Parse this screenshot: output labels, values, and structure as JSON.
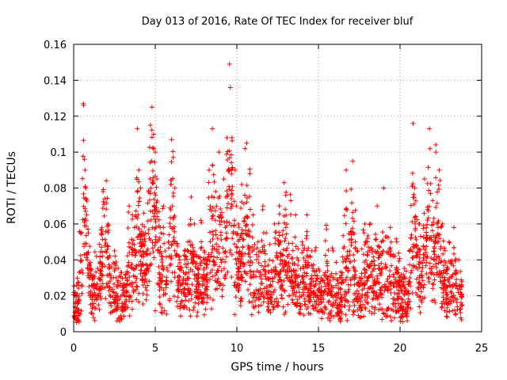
{
  "chart_data": {
    "type": "scatter",
    "title": "Day 013 of 2016, Rate Of TEC Index for receiver bluf",
    "xlabel": "GPS time / hours",
    "ylabel": "ROTI / TECUs",
    "xlim": [
      0,
      25
    ],
    "ylim": [
      0,
      0.16
    ],
    "xticks": [
      0,
      5,
      10,
      15,
      20,
      25
    ],
    "yticks": [
      0,
      0.02,
      0.04,
      0.06,
      0.08,
      0.1,
      0.12,
      0.14,
      0.16
    ],
    "xtick_labels": [
      "0",
      "5",
      "10",
      "15",
      "20",
      "25"
    ],
    "ytick_labels": [
      "0",
      "0.02",
      "0.04",
      "0.06",
      "0.08",
      "0.1",
      "0.12",
      "0.14",
      "0.16"
    ],
    "grid": true,
    "marker": "+",
    "color": "#ff0000",
    "series": [
      {
        "name": "ROTI",
        "points": [
          [
            0.1,
            0.022
          ],
          [
            0.3,
            0.018
          ],
          [
            0.5,
            0.026
          ],
          [
            0.6,
            0.127
          ],
          [
            0.7,
            0.09
          ],
          [
            0.75,
            0.08
          ],
          [
            0.8,
            0.065
          ],
          [
            0.9,
            0.055
          ],
          [
            1.0,
            0.03
          ],
          [
            1.2,
            0.02
          ],
          [
            1.4,
            0.042
          ],
          [
            1.6,
            0.038
          ],
          [
            1.7,
            0.054
          ],
          [
            1.8,
            0.078
          ],
          [
            1.9,
            0.074
          ],
          [
            2.0,
            0.084
          ],
          [
            2.1,
            0.06
          ],
          [
            2.3,
            0.03
          ],
          [
            2.6,
            0.02
          ],
          [
            3.0,
            0.025
          ],
          [
            3.2,
            0.03
          ],
          [
            3.4,
            0.07
          ],
          [
            3.6,
            0.065
          ],
          [
            3.9,
            0.113
          ],
          [
            4.0,
            0.09
          ],
          [
            4.1,
            0.08
          ],
          [
            4.3,
            0.066
          ],
          [
            4.5,
            0.045
          ],
          [
            4.7,
            0.115
          ],
          [
            4.8,
            0.125
          ],
          [
            4.9,
            0.11
          ],
          [
            5.0,
            0.1
          ],
          [
            5.1,
            0.085
          ],
          [
            5.3,
            0.058
          ],
          [
            5.5,
            0.07
          ],
          [
            5.8,
            0.05
          ],
          [
            6.0,
            0.107
          ],
          [
            6.1,
            0.097
          ],
          [
            6.2,
            0.08
          ],
          [
            6.5,
            0.04
          ],
          [
            7.0,
            0.05
          ],
          [
            7.2,
            0.075
          ],
          [
            7.4,
            0.06
          ],
          [
            7.6,
            0.035
          ],
          [
            7.8,
            0.062
          ],
          [
            8.0,
            0.045
          ],
          [
            8.3,
            0.09
          ],
          [
            8.5,
            0.113
          ],
          [
            8.7,
            0.078
          ],
          [
            8.9,
            0.1
          ],
          [
            9.2,
            0.085
          ],
          [
            9.4,
            0.108
          ],
          [
            9.55,
            0.149
          ],
          [
            9.6,
            0.136
          ],
          [
            9.7,
            0.108
          ],
          [
            9.9,
            0.09
          ],
          [
            10.1,
            0.06
          ],
          [
            10.3,
            0.082
          ],
          [
            10.5,
            0.102
          ],
          [
            10.6,
            0.105
          ],
          [
            10.8,
            0.088
          ],
          [
            11.0,
            0.065
          ],
          [
            11.3,
            0.05
          ],
          [
            11.6,
            0.07
          ],
          [
            12.0,
            0.04
          ],
          [
            12.3,
            0.06
          ],
          [
            12.6,
            0.07
          ],
          [
            12.9,
            0.083
          ],
          [
            13.0,
            0.076
          ],
          [
            13.3,
            0.073
          ],
          [
            13.6,
            0.065
          ],
          [
            14.0,
            0.05
          ],
          [
            14.3,
            0.065
          ],
          [
            14.6,
            0.045
          ],
          [
            15.0,
            0.035
          ],
          [
            15.5,
            0.057
          ],
          [
            15.9,
            0.045
          ],
          [
            16.3,
            0.03
          ],
          [
            16.7,
            0.09
          ],
          [
            17.1,
            0.095
          ],
          [
            17.4,
            0.045
          ],
          [
            17.8,
            0.055
          ],
          [
            18.2,
            0.06
          ],
          [
            18.6,
            0.07
          ],
          [
            19.0,
            0.08
          ],
          [
            19.4,
            0.058
          ],
          [
            19.8,
            0.05
          ],
          [
            20.2,
            0.03
          ],
          [
            20.6,
            0.03
          ],
          [
            20.8,
            0.116
          ],
          [
            20.9,
            0.08
          ],
          [
            21.2,
            0.06
          ],
          [
            21.5,
            0.085
          ],
          [
            21.8,
            0.113
          ],
          [
            22.0,
            0.073
          ],
          [
            22.2,
            0.1
          ],
          [
            22.4,
            0.09
          ],
          [
            22.6,
            0.06
          ],
          [
            23.0,
            0.05
          ],
          [
            23.3,
            0.058
          ],
          [
            23.6,
            0.04
          ],
          [
            23.7,
            0.022
          ],
          [
            23.8,
            0.015
          ],
          [
            2.5,
            0.045
          ],
          [
            6.8,
            0.045
          ],
          [
            11.8,
            0.055
          ],
          [
            14.8,
            0.045
          ],
          [
            18.0,
            0.05
          ],
          [
            9.0,
            0.065
          ],
          [
            4.4,
            0.055
          ]
        ]
      }
    ],
    "background_cloud": {
      "x_range": [
        0,
        23.8
      ],
      "baseline_range": [
        0.005,
        0.03
      ],
      "note": "dense band of points between 0.005 and ~0.03 across the whole day"
    }
  }
}
